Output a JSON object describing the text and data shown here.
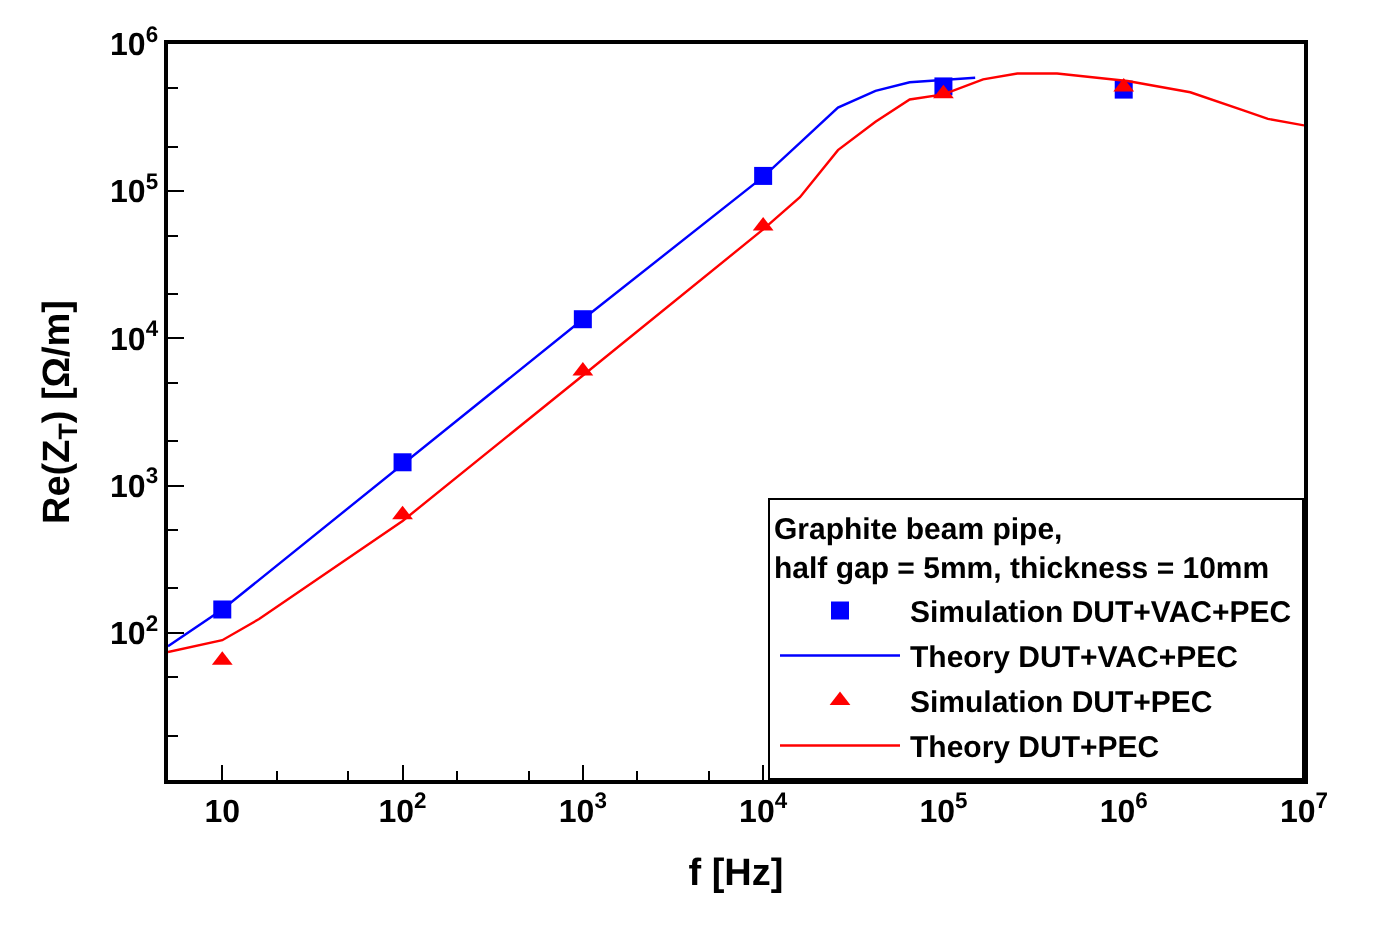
{
  "chart_data": {
    "type": "line",
    "xlabel": "f [Hz]",
    "ylabel": "Re(Z$_{T}$) [Ω/m]",
    "legend_title": "Graphite beam pipe,\nhalf gap = 5mm, thickness = 10mm",
    "log": "xy",
    "legend": "bottom right",
    "xlim": [
      5,
      10000000
    ],
    "ylim": [
      10,
      1000000
    ],
    "xticks": [
      10,
      {
        "value": 100,
        "label": "10$^{2}$"
      },
      {
        "value": 1000,
        "label": "10$^{3}$"
      },
      {
        "value": 10000,
        "label": "10$^{4}$"
      },
      {
        "value": 100000,
        "label": "10$^{5}$"
      },
      {
        "value": 1000000,
        "label": "10$^{6}$"
      },
      {
        "value": 10000000,
        "label": "10$^{7}$"
      }
    ],
    "yticks": [
      {
        "value": 100,
        "label": "10$^{2}$"
      },
      {
        "value": 1000,
        "label": "10$^{3}$"
      },
      {
        "value": 10000,
        "label": "10$^{4}$"
      },
      {
        "value": 100000,
        "label": "10$^{5}$"
      },
      {
        "value": 1000000,
        "label": "10$^{6}$"
      }
    ],
    "series": [
      {
        "name": "Simulation DUT+VAC+PEC",
        "type": "scatter",
        "marker": "square",
        "color": "#0000ff",
        "x": [
          10,
          100,
          1000,
          10000,
          100000,
          1000000
        ],
        "values": [
          144,
          1440,
          13500,
          127000,
          515000,
          490000
        ]
      },
      {
        "name": "Theory DUT+VAC+PEC",
        "marker": "none",
        "color": "#0000ff",
        "x": [
          5,
          10,
          1000,
          10000,
          16000,
          26000,
          42000,
          65000,
          150000
        ],
        "values": [
          81,
          144,
          13500,
          125000,
          213000,
          370000,
          480000,
          550000,
          590000
        ]
      },
      {
        "name": "Simulation DUT+PEC",
        "type": "scatter",
        "marker": "triangle",
        "color": "#ff0000",
        "x": [
          10,
          100,
          1000,
          10000,
          100000,
          1000000
        ],
        "values": [
          65,
          635,
          6000,
          58000,
          460000,
          510000
        ]
      },
      {
        "name": "Theory DUT+PEC",
        "marker": "none",
        "color": "#ff0000",
        "x": [
          5,
          10,
          16,
          100,
          1000,
          10000,
          16000,
          26000,
          42000,
          65000,
          100000,
          166000,
          257000,
          427000,
          1050000,
          2340000,
          4570000,
          6310000,
          10000000
        ],
        "values": [
          74,
          89,
          124,
          575,
          5600,
          55000,
          91000,
          190000,
          296000,
          420000,
          455000,
          575000,
          630000,
          630000,
          560000,
          470000,
          355000,
          310000,
          280000
        ]
      }
    ]
  }
}
